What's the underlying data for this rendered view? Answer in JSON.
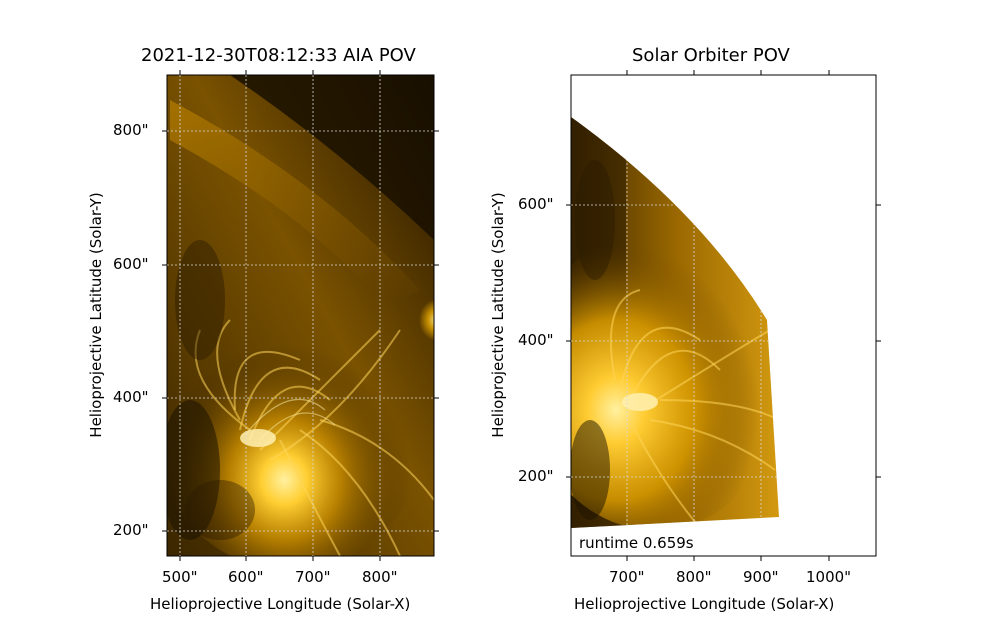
{
  "left_panel": {
    "title": "2021-12-30T08:12:33 AIA POV",
    "xlabel": "Helioprojective Longitude (Solar-X)",
    "ylabel": "Helioprojective Latitude (Solar-Y)",
    "xticks": [
      "500\"",
      "600\"",
      "700\"",
      "800\""
    ],
    "yticks": [
      "800\"",
      "600\"",
      "400\"",
      "200\""
    ]
  },
  "right_panel": {
    "title": "Solar Orbiter POV",
    "xlabel": "Helioprojective Longitude (Solar-X)",
    "ylabel": "Helioprojective Latitude (Solar-Y)",
    "xticks": [
      "700\"",
      "800\"",
      "900\"",
      "1000\""
    ],
    "yticks": [
      "600\"",
      "400\"",
      "200\""
    ],
    "annotation": "runtime 0.659s"
  },
  "colors": {
    "background": "#ffffff",
    "corona_bright": "#ffd24a",
    "corona_mid": "#c98a00",
    "corona_dark": "#2a1a00",
    "grid": "#d8d8d8"
  }
}
